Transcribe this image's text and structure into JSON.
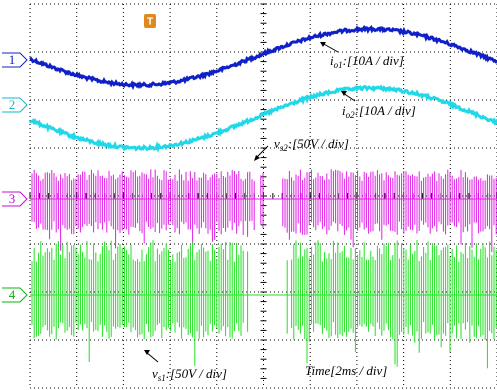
{
  "channels": [
    {
      "marker": "1",
      "symbol": "i",
      "subscript": "o1",
      "scale": ":[10A / div]"
    },
    {
      "marker": "2",
      "symbol": "i",
      "subscript": "o2",
      "scale": ":[10A / div]"
    },
    {
      "marker": "3",
      "symbol": "v",
      "subscript": "s2",
      "scale": ":[50V / div]"
    },
    {
      "marker": "4",
      "symbol": "v",
      "subscript": "s1",
      "scale": ":[50V / div]"
    }
  ],
  "trigger": "T",
  "time_scale": "Time[2ms / div]"
}
